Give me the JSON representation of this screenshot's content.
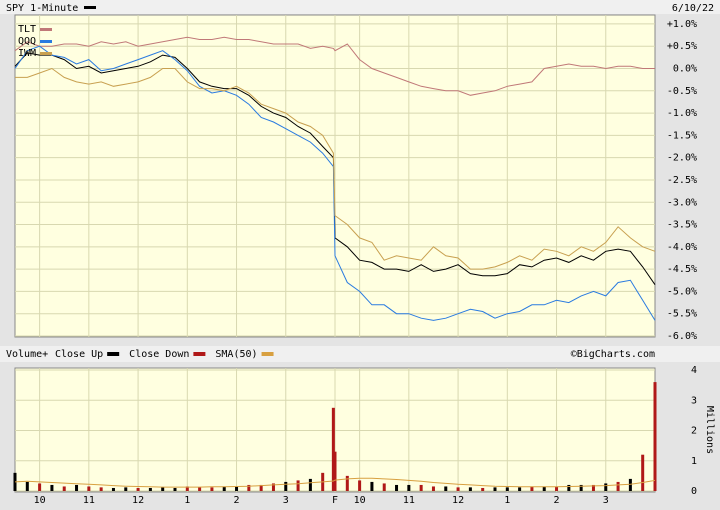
{
  "chart_data": [
    {
      "type": "line",
      "date": "6/10/22",
      "x": [
        0,
        15,
        30,
        45,
        60,
        75,
        90,
        105,
        120,
        135,
        150,
        165,
        180,
        195,
        210,
        225,
        240,
        255,
        270,
        285,
        300,
        315,
        330,
        345,
        360,
        375,
        388,
        390,
        405,
        420,
        435,
        450,
        465,
        480,
        495,
        510,
        525,
        540,
        555,
        570,
        585,
        600,
        615,
        630,
        645,
        660,
        675,
        690,
        705,
        720,
        735,
        750,
        765,
        780
      ],
      "xlim": [
        0,
        780
      ],
      "xticks": [
        {
          "value": 30,
          "label": "10"
        },
        {
          "value": 90,
          "label": "11"
        },
        {
          "value": 150,
          "label": "12"
        },
        {
          "value": 210,
          "label": "1"
        },
        {
          "value": 270,
          "label": "2"
        },
        {
          "value": 330,
          "label": "3"
        },
        {
          "value": 390,
          "label": "F"
        },
        {
          "value": 420,
          "label": "10"
        },
        {
          "value": 480,
          "label": "11"
        },
        {
          "value": 540,
          "label": "12"
        },
        {
          "value": 600,
          "label": "1"
        },
        {
          "value": 660,
          "label": "2"
        },
        {
          "value": 720,
          "label": "3"
        }
      ],
      "ylim": [
        -6.0,
        1.2
      ],
      "yticks": [
        {
          "value": 1.0,
          "label": "+1.0%"
        },
        {
          "value": 0.5,
          "label": "+0.5%"
        },
        {
          "value": 0.0,
          "label": "0.0%"
        },
        {
          "value": -0.5,
          "label": "-0.5%"
        },
        {
          "value": -1.0,
          "label": "-1.0%"
        },
        {
          "value": -1.5,
          "label": "-1.5%"
        },
        {
          "value": -2.0,
          "label": "-2.0%"
        },
        {
          "value": -2.5,
          "label": "-2.5%"
        },
        {
          "value": -3.0,
          "label": "-3.0%"
        },
        {
          "value": -3.5,
          "label": "-3.5%"
        },
        {
          "value": -4.0,
          "label": "-4.0%"
        },
        {
          "value": -4.5,
          "label": "-4.5%"
        },
        {
          "value": -5.0,
          "label": "-5.0%"
        },
        {
          "value": -5.5,
          "label": "-5.5%"
        },
        {
          "value": -6.0,
          "label": "-6.0%"
        }
      ],
      "grid": true,
      "series": [
        {
          "name": "SPY 1-Minute",
          "color": "#000000",
          "values": [
            0.05,
            0.35,
            0.3,
            0.3,
            0.2,
            0.0,
            0.05,
            -0.1,
            -0.05,
            0.0,
            0.05,
            0.15,
            0.3,
            0.25,
            0.0,
            -0.3,
            -0.4,
            -0.45,
            -0.45,
            -0.6,
            -0.85,
            -1.0,
            -1.1,
            -1.3,
            -1.45,
            -1.75,
            -2.0,
            -3.8,
            -4.0,
            -4.3,
            -4.35,
            -4.5,
            -4.5,
            -4.55,
            -4.4,
            -4.55,
            -4.5,
            -4.4,
            -4.6,
            -4.65,
            -4.65,
            -4.6,
            -4.4,
            -4.45,
            -4.3,
            -4.25,
            -4.35,
            -4.2,
            -4.3,
            -4.1,
            -4.05,
            -4.1,
            -4.45,
            -4.85
          ]
        },
        {
          "name": "TLT",
          "color": "#c07878",
          "values": [
            0.4,
            0.6,
            0.5,
            0.5,
            0.55,
            0.55,
            0.5,
            0.6,
            0.55,
            0.6,
            0.5,
            0.55,
            0.6,
            0.65,
            0.7,
            0.65,
            0.65,
            0.7,
            0.65,
            0.65,
            0.6,
            0.55,
            0.55,
            0.55,
            0.45,
            0.5,
            0.45,
            0.4,
            0.55,
            0.2,
            0.0,
            -0.1,
            -0.2,
            -0.3,
            -0.4,
            -0.45,
            -0.5,
            -0.5,
            -0.6,
            -0.55,
            -0.5,
            -0.4,
            -0.35,
            -0.3,
            0.0,
            0.05,
            0.1,
            0.05,
            0.05,
            0.0,
            0.05,
            0.05,
            0.0,
            0.0
          ]
        },
        {
          "name": "QQQ",
          "color": "#2a7be0",
          "values": [
            0.0,
            0.4,
            0.5,
            0.3,
            0.25,
            0.1,
            0.2,
            -0.05,
            0.0,
            0.1,
            0.2,
            0.3,
            0.4,
            0.2,
            -0.05,
            -0.4,
            -0.55,
            -0.5,
            -0.6,
            -0.8,
            -1.1,
            -1.2,
            -1.35,
            -1.5,
            -1.65,
            -1.9,
            -2.2,
            -4.2,
            -4.8,
            -5.0,
            -5.3,
            -5.3,
            -5.5,
            -5.5,
            -5.6,
            -5.65,
            -5.6,
            -5.5,
            -5.4,
            -5.45,
            -5.6,
            -5.5,
            -5.45,
            -5.3,
            -5.3,
            -5.2,
            -5.25,
            -5.1,
            -5.0,
            -5.1,
            -4.8,
            -4.75,
            -5.2,
            -5.65
          ]
        },
        {
          "name": "IWM",
          "color": "#c8a050",
          "values": [
            -0.2,
            -0.2,
            -0.1,
            0.0,
            -0.2,
            -0.3,
            -0.35,
            -0.3,
            -0.4,
            -0.35,
            -0.3,
            -0.2,
            0.0,
            0.0,
            -0.3,
            -0.45,
            -0.45,
            -0.5,
            -0.4,
            -0.55,
            -0.8,
            -0.9,
            -1.0,
            -1.2,
            -1.3,
            -1.5,
            -1.9,
            -3.3,
            -3.5,
            -3.8,
            -3.9,
            -4.3,
            -4.2,
            -4.25,
            -4.3,
            -4.0,
            -4.2,
            -4.25,
            -4.5,
            -4.5,
            -4.45,
            -4.35,
            -4.2,
            -4.3,
            -4.05,
            -4.1,
            -4.2,
            -4.0,
            -4.1,
            -3.9,
            -3.55,
            -3.8,
            -4.0,
            -4.1
          ]
        }
      ]
    },
    {
      "type": "bar",
      "title": "Volume+",
      "source": "©BigCharts.com",
      "y_label": "Millions",
      "x": [
        0,
        15,
        30,
        45,
        60,
        75,
        90,
        105,
        120,
        135,
        150,
        165,
        180,
        195,
        210,
        225,
        240,
        255,
        270,
        285,
        300,
        315,
        330,
        345,
        360,
        375,
        388,
        390,
        405,
        420,
        435,
        450,
        465,
        480,
        495,
        510,
        525,
        540,
        555,
        570,
        585,
        600,
        615,
        630,
        645,
        660,
        675,
        690,
        705,
        720,
        735,
        750,
        765,
        780
      ],
      "xlim": [
        0,
        780
      ],
      "xticks": [
        {
          "value": 30,
          "label": "10"
        },
        {
          "value": 90,
          "label": "11"
        },
        {
          "value": 150,
          "label": "12"
        },
        {
          "value": 210,
          "label": "1"
        },
        {
          "value": 270,
          "label": "2"
        },
        {
          "value": 330,
          "label": "3"
        },
        {
          "value": 390,
          "label": "F"
        },
        {
          "value": 420,
          "label": "10"
        },
        {
          "value": 480,
          "label": "11"
        },
        {
          "value": 540,
          "label": "12"
        },
        {
          "value": 600,
          "label": "1"
        },
        {
          "value": 660,
          "label": "2"
        },
        {
          "value": 720,
          "label": "3"
        }
      ],
      "ylim": [
        0,
        4
      ],
      "yticks": [
        0,
        1,
        2,
        3,
        4
      ],
      "grid": true,
      "series": [
        {
          "name": "Close Up",
          "color": "#000000",
          "values": [
            0.6,
            0.3,
            null,
            0.2,
            null,
            0.2,
            null,
            null,
            0.1,
            0.12,
            null,
            0.1,
            0.12,
            0.1,
            null,
            null,
            null,
            0.15,
            0.15,
            null,
            null,
            null,
            0.3,
            null,
            0.4,
            null,
            null,
            null,
            null,
            null,
            0.3,
            null,
            0.2,
            0.2,
            null,
            null,
            0.15,
            null,
            0.12,
            null,
            0.12,
            0.12,
            0.12,
            null,
            0.15,
            null,
            0.2,
            0.2,
            null,
            0.25,
            null,
            0.4,
            null,
            null
          ]
        },
        {
          "name": "Close Down",
          "color": "#b01818",
          "values": [
            null,
            null,
            0.25,
            null,
            0.15,
            null,
            0.15,
            0.12,
            null,
            null,
            0.1,
            null,
            null,
            null,
            0.15,
            0.12,
            0.12,
            null,
            null,
            0.2,
            0.2,
            0.25,
            null,
            0.35,
            null,
            0.6,
            2.75,
            1.3,
            0.5,
            0.35,
            null,
            0.25,
            null,
            null,
            0.2,
            0.15,
            null,
            0.12,
            null,
            0.1,
            null,
            null,
            null,
            0.15,
            null,
            0.15,
            null,
            null,
            0.2,
            null,
            0.3,
            null,
            1.2,
            3.6
          ]
        },
        {
          "name": "SMA(50)",
          "type": "line",
          "color": "#d8a040",
          "values": [
            0.3,
            0.32,
            0.3,
            0.28,
            0.26,
            0.24,
            0.22,
            0.2,
            0.18,
            0.16,
            0.15,
            0.14,
            0.13,
            0.13,
            0.13,
            0.13,
            0.14,
            0.14,
            0.15,
            0.16,
            0.18,
            0.2,
            0.22,
            0.24,
            0.27,
            0.3,
            0.33,
            0.36,
            0.4,
            0.42,
            0.42,
            0.4,
            0.38,
            0.35,
            0.32,
            0.28,
            0.25,
            0.22,
            0.2,
            0.18,
            0.16,
            0.15,
            0.14,
            0.14,
            0.14,
            0.14,
            0.15,
            0.16,
            0.17,
            0.18,
            0.2,
            0.22,
            0.28,
            0.35
          ]
        }
      ]
    }
  ]
}
